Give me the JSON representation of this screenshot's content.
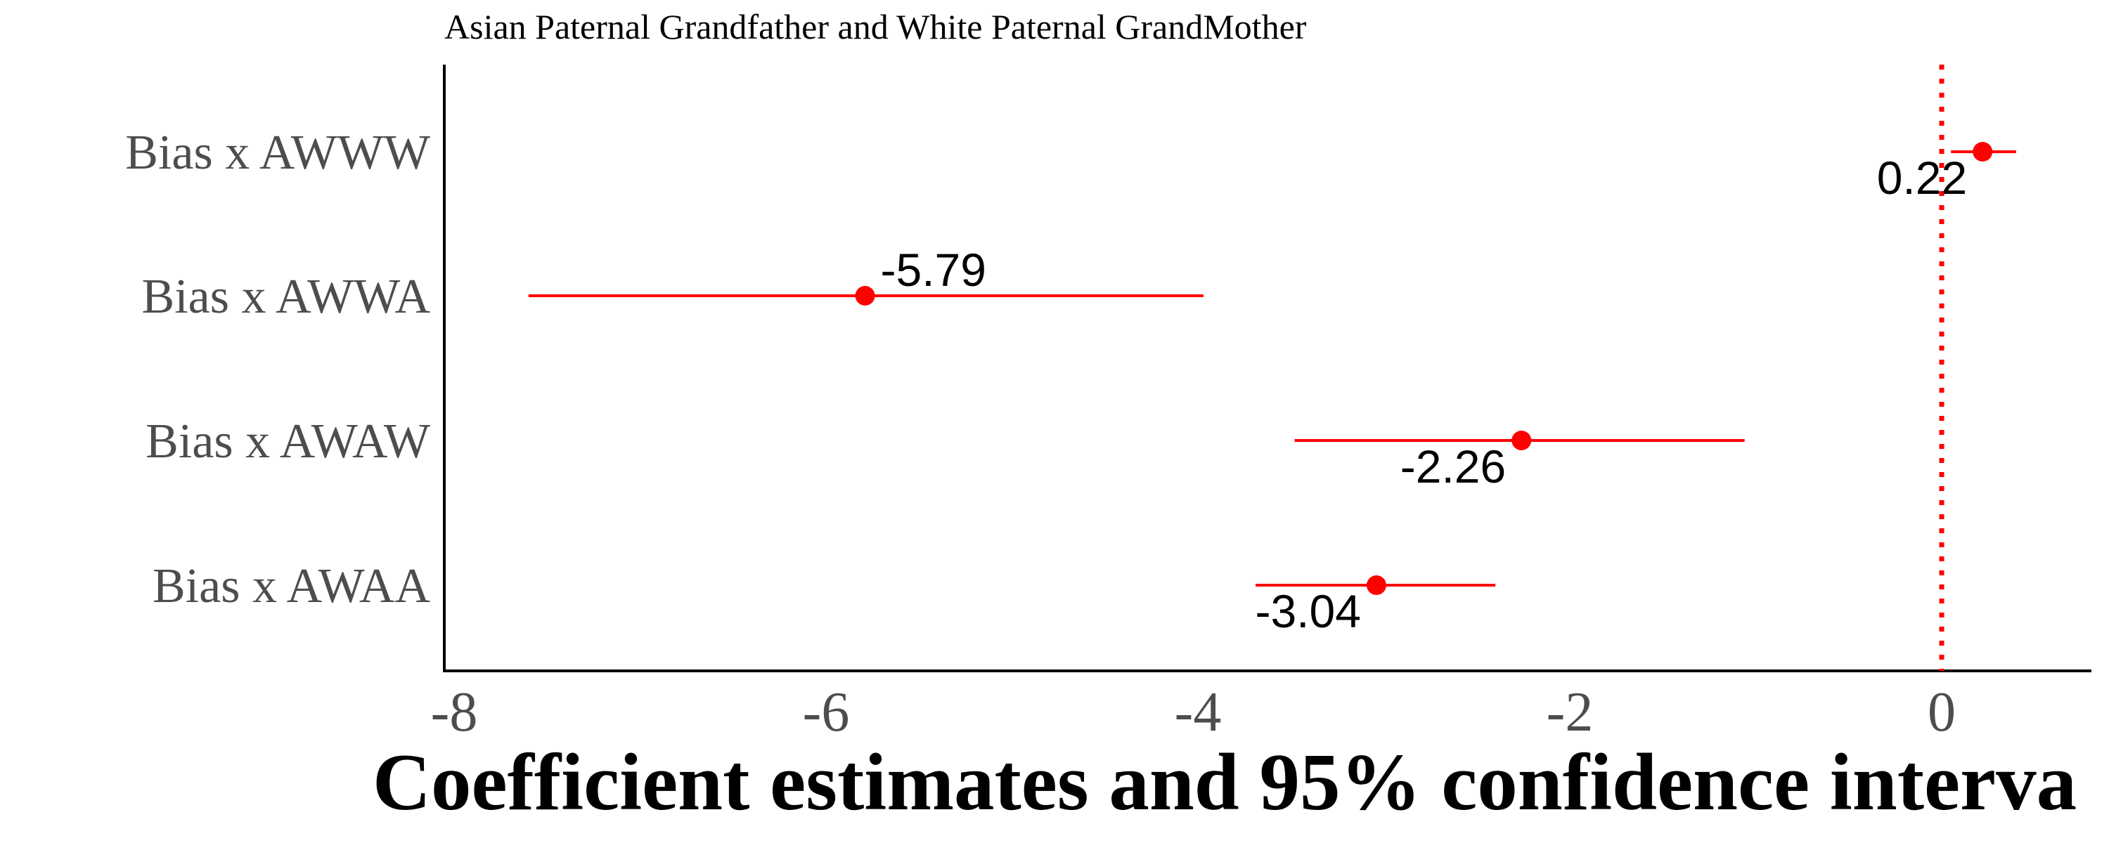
{
  "chart_data": {
    "type": "forest",
    "title": "Asian Paternal Grandfather and White Paternal GrandMother",
    "xlabel": "Coefficient estimates and 95% confidence interva",
    "ylabel": "",
    "xlim": [
      -8,
      0.8
    ],
    "xticks": [
      -8,
      -6,
      -4,
      -2,
      0
    ],
    "reference_line": 0,
    "grid": false,
    "color": "#ff0000",
    "rows": [
      {
        "label": "Bias x AWWW",
        "estimate": 0.22,
        "ci_low": 0.05,
        "ci_high": 0.4,
        "value_label": "0.22",
        "label_side": "below-left"
      },
      {
        "label": "Bias x AWWA",
        "estimate": -5.79,
        "ci_low": -7.6,
        "ci_high": -3.97,
        "value_label": "-5.79",
        "label_side": "above-right"
      },
      {
        "label": "Bias x AWAW",
        "estimate": -2.26,
        "ci_low": -3.48,
        "ci_high": -1.06,
        "value_label": "-2.26",
        "label_side": "below-left"
      },
      {
        "label": "Bias x AWAA",
        "estimate": -3.04,
        "ci_low": -3.69,
        "ci_high": -2.4,
        "value_label": "-3.04",
        "label_side": "below-left"
      }
    ]
  }
}
